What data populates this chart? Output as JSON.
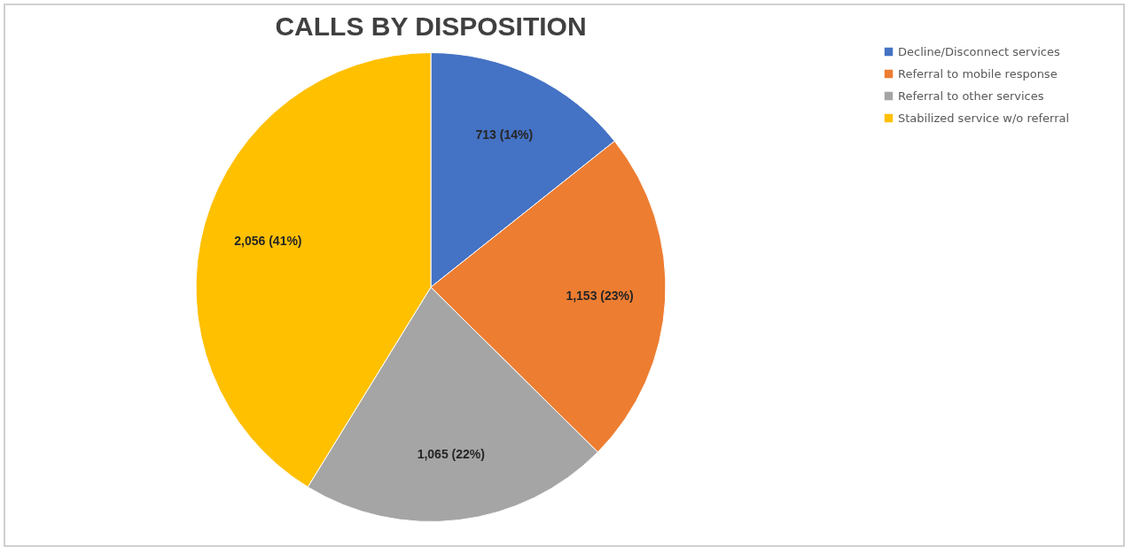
{
  "chart_data": {
    "type": "pie",
    "title": "CALLS BY DISPOSITION",
    "categories": [
      "Decline/Disconnect services",
      "Referral to mobile response",
      "Referral to other services",
      "Stabilized service w/o referral"
    ],
    "values": [
      713,
      1153,
      1065,
      2056
    ],
    "colors": [
      "#4472c4",
      "#ed7d31",
      "#a5a5a5",
      "#ffc000"
    ],
    "value_labels": [
      "713 (14%)",
      "1,153 (23%)",
      "1,065 (22%)",
      "2,056 (41%)"
    ],
    "legend": "right"
  }
}
